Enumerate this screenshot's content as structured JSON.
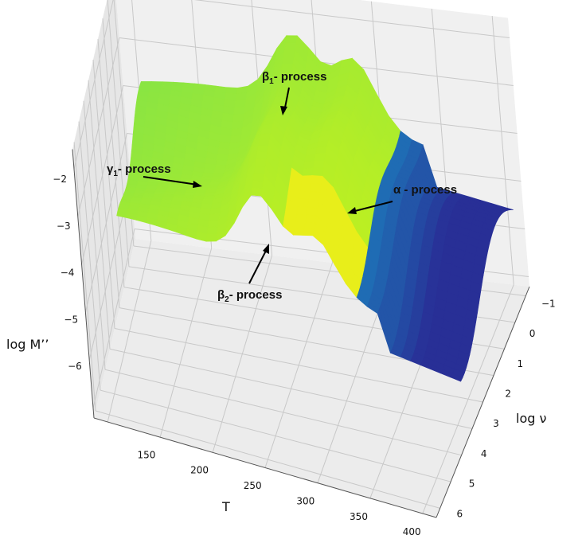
{
  "chart_data": {
    "type": "surface",
    "axes": {
      "x": {
        "label": "T",
        "ticks": [
          "150",
          "200",
          "250",
          "300",
          "350",
          "400"
        ],
        "range": [
          120,
          425
        ]
      },
      "y": {
        "label": "log ν",
        "ticks": [
          "−1",
          "0",
          "1",
          "2",
          "3",
          "4",
          "5",
          "6"
        ],
        "range": [
          -1.5,
          6.5
        ]
      },
      "z": {
        "label": "log M’’",
        "ticks": [
          "−2",
          "−3",
          "−4",
          "−5",
          "−6"
        ],
        "range": [
          -6.2,
          -1.8
        ]
      }
    },
    "grid": true,
    "colormap": [
      "#2b1a8c",
      "#1f6fb5",
      "#2fb6a0",
      "#7ee24a",
      "#c8f21a",
      "#f2ec1a"
    ],
    "surface_height_scale": {
      "low": -6,
      "high": -2
    },
    "annotations": [
      {
        "name": "beta1",
        "text": "β",
        "sub": "1",
        "suffix": "- process"
      },
      {
        "name": "gamma1",
        "text": "γ",
        "sub": "1",
        "suffix": "- process"
      },
      {
        "name": "alpha",
        "text": "α - process",
        "sub": "",
        "suffix": ""
      },
      {
        "name": "beta2",
        "text": "β",
        "sub": "2",
        "suffix": "- process"
      }
    ]
  }
}
